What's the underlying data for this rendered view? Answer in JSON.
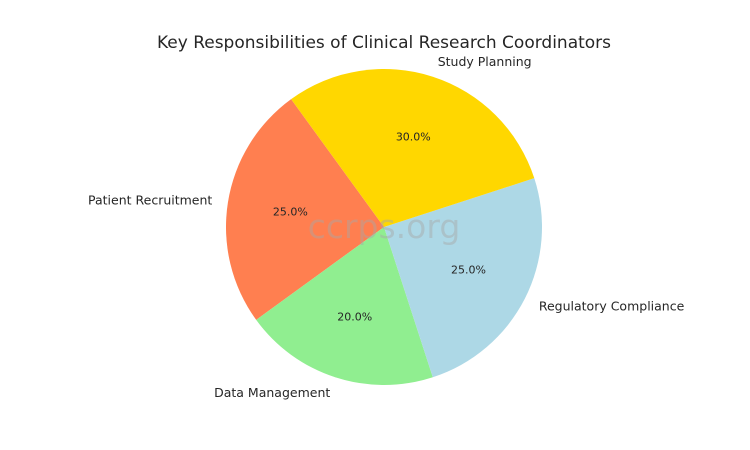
{
  "chart_data": {
    "type": "pie",
    "title": "Key Responsibilities of Clinical Research Coordinators",
    "categories": [
      "Patient Recruitment",
      "Data Management",
      "Regulatory Compliance",
      "Study Planning"
    ],
    "values": [
      25.0,
      20.0,
      25.0,
      30.0
    ],
    "percent_labels": [
      "25.0%",
      "20.0%",
      "25.0%",
      "30.0%"
    ],
    "colors": [
      "#ff7f50",
      "#90ee90",
      "#add8e6",
      "#ffd700"
    ],
    "start_angle_deg": 126,
    "direction": "counterclockwise",
    "legend": "none",
    "watermark": "ccrps.org"
  }
}
